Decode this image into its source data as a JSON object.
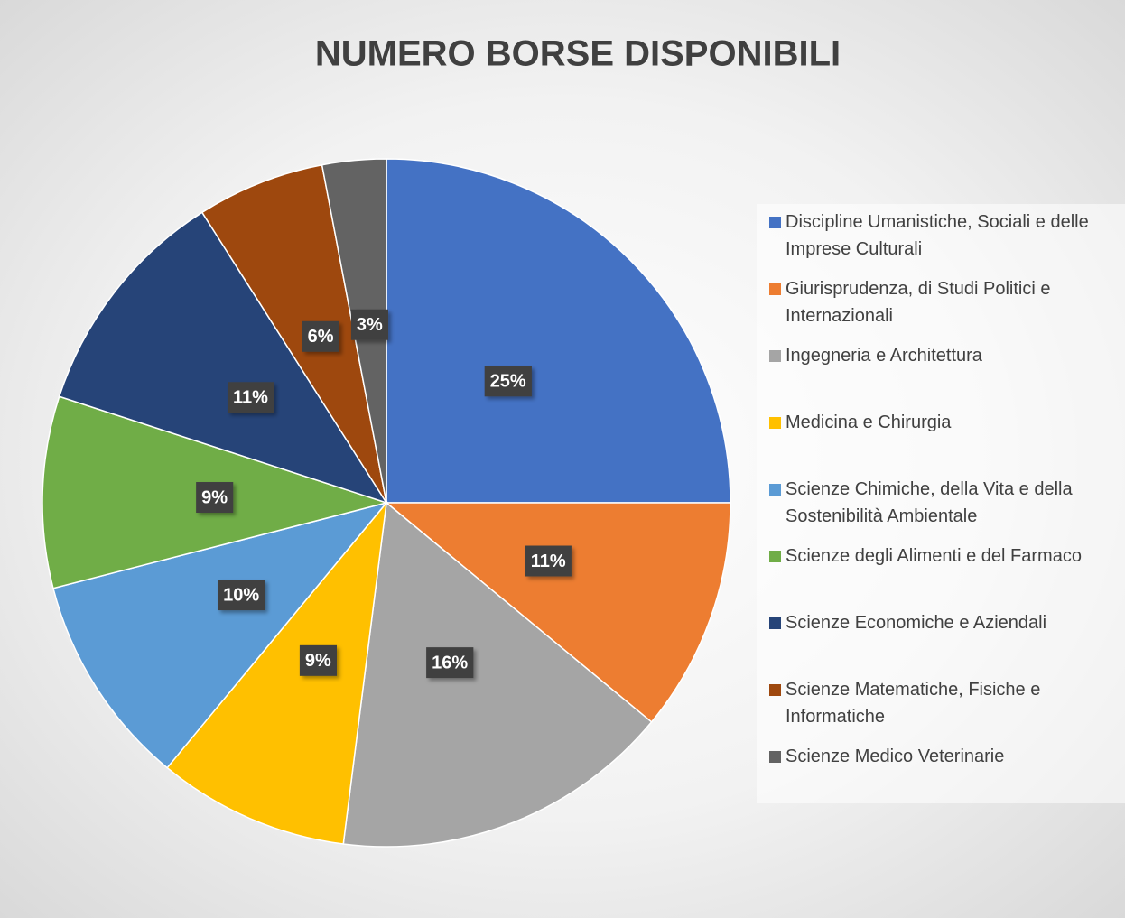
{
  "chart_data": {
    "type": "pie",
    "title": "NUMERO BORSE DISPONIBILI",
    "categories": [
      "Discipline Umanistiche, Sociali e delle Imprese Culturali",
      "Giurisprudenza, di Studi Politici e Internazionali",
      "Ingegneria e Architettura",
      "Medicina e Chirurgia",
      "Scienze Chimiche, della Vita e della Sostenibilità Ambientale",
      "Scienze degli Alimenti e del Farmaco",
      "Scienze Economiche e Aziendali",
      "Scienze Matematiche, Fisiche e Informatiche",
      "Scienze Medico Veterinarie"
    ],
    "values": [
      25,
      11,
      16,
      9,
      10,
      9,
      11,
      6,
      3
    ],
    "value_labels": [
      "25%",
      "11%",
      "16%",
      "9%",
      "10%",
      "9%",
      "11%",
      "6%",
      "3%"
    ],
    "colors": [
      "#4472c4",
      "#ed7d31",
      "#a5a5a5",
      "#ffc000",
      "#5b9bd5",
      "#70ad47",
      "#264478",
      "#9e480e",
      "#636363"
    ],
    "legend": "right"
  }
}
